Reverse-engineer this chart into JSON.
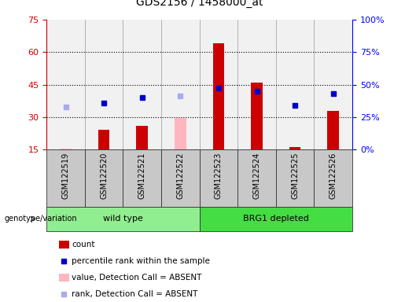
{
  "title": "GDS2156 / 1458000_at",
  "samples": [
    "GSM122519",
    "GSM122520",
    "GSM122521",
    "GSM122522",
    "GSM122523",
    "GSM122524",
    "GSM122525",
    "GSM122526"
  ],
  "count_values": [
    null,
    24,
    26,
    null,
    64,
    46,
    16,
    33
  ],
  "count_absent": [
    15.5,
    null,
    null,
    null,
    null,
    null,
    null,
    null
  ],
  "percentile_rank": [
    null,
    36,
    40,
    null,
    47,
    45,
    34,
    43
  ],
  "rank_absent": [
    33,
    null,
    null,
    41,
    null,
    null,
    null,
    null
  ],
  "value_absent": [
    null,
    null,
    null,
    29.5,
    null,
    null,
    null,
    null
  ],
  "ylim_left": [
    15,
    75
  ],
  "ylim_right": [
    0,
    100
  ],
  "yticks_left": [
    15,
    30,
    45,
    60,
    75
  ],
  "yticks_right": [
    0,
    25,
    50,
    75,
    100
  ],
  "yticklabels_right": [
    "0%",
    "25%",
    "50%",
    "75%",
    "100%"
  ],
  "bar_color": "#CC0000",
  "bar_absent_color": "#FFB6C1",
  "dot_color": "#0000CC",
  "dot_absent_color": "#AAAAEE",
  "title_fontsize": 10,
  "left_tick_color": "#CC0000",
  "right_tick_color": "#0000FF",
  "bg_color": "#C8C8C8",
  "plot_bg_color": "#FFFFFF",
  "bar_width": 0.3,
  "group_spans": [
    [
      0,
      3,
      "wild type",
      "#90EE90"
    ],
    [
      4,
      7,
      "BRG1 depleted",
      "#44DD44"
    ]
  ],
  "legend_items": [
    {
      "color": "#CC0000",
      "type": "bar",
      "label": "count"
    },
    {
      "color": "#0000CC",
      "type": "dot",
      "label": "percentile rank within the sample"
    },
    {
      "color": "#FFB6C1",
      "type": "bar",
      "label": "value, Detection Call = ABSENT"
    },
    {
      "color": "#AAAAEE",
      "type": "dot",
      "label": "rank, Detection Call = ABSENT"
    }
  ]
}
